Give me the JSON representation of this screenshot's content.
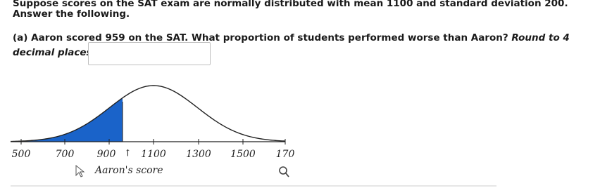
{
  "question": {
    "intro": "Suppose scores on the SAT exam are normally distributed with mean 1100 and standard deviation 200.",
    "instruction": "Answer the following.",
    "part_a": {
      "label": "(a)",
      "text": "Aaron scored 959 on the SAT. What proportion of students performed worse than Aaron?",
      "round_note_1": "Round to 4",
      "round_note_2": "decimal places."
    }
  },
  "figure": {
    "axis_labels": [
      "500",
      "700",
      "900",
      "1100",
      "1300",
      "1500",
      "170"
    ],
    "caption": "Aaron's score"
  }
}
